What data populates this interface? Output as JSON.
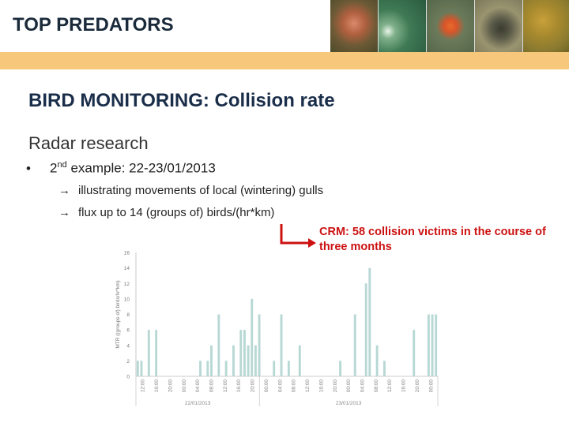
{
  "header": {
    "title": "TOP PREDATORS"
  },
  "section": {
    "title": "BIRD MONITORING: Collision rate",
    "subtitle": "Radar research"
  },
  "bullet": {
    "prefix": "2",
    "sup": "nd",
    "text": " example: 22-23/01/2013"
  },
  "points": [
    "illustrating movements of local (wintering) gulls",
    "flux up to 14 (groups of) birds/(hr*km)"
  ],
  "crm_note": "CRM: 58 collision victims in the course of three months",
  "colors": {
    "band": "#f7c77c",
    "bars": "#b7d8d4",
    "note": "#cc1111"
  },
  "chart_data": {
    "type": "bar",
    "ylabel": "MTR ((groups of) birds/hr*km)",
    "ylim": [
      0,
      16
    ],
    "yticks": [
      0,
      2,
      4,
      6,
      8,
      10,
      12,
      14,
      16
    ],
    "xtick_labels": [
      "12:00",
      "16:00",
      "20:00",
      "00:00",
      "04:00",
      "08:00",
      "12:00",
      "16:00",
      "20:00",
      "00:00",
      "04:00",
      "08:00",
      "12:00",
      "16:00",
      "20:00",
      "00:00",
      "04:00",
      "08:00",
      "12:00",
      "16:00",
      "20:00",
      "00:00"
    ],
    "date_labels": [
      "22/01/2013",
      "23/01/2013"
    ],
    "values": [
      2,
      2,
      0,
      6,
      0,
      6,
      0,
      0,
      0,
      0,
      0,
      0,
      0,
      0,
      0,
      0,
      0,
      2,
      0,
      2,
      4,
      0,
      8,
      0,
      2,
      0,
      4,
      0,
      6,
      6,
      4,
      10,
      4,
      8,
      0,
      0,
      0,
      2,
      0,
      8,
      0,
      2,
      0,
      0,
      4,
      0,
      0,
      0,
      0,
      0,
      0,
      0,
      0,
      0,
      0,
      2,
      0,
      0,
      0,
      8,
      0,
      0,
      12,
      14,
      0,
      4,
      0,
      2,
      0,
      0,
      0,
      0,
      0,
      0,
      0,
      6,
      0,
      0,
      0,
      8,
      8,
      8
    ]
  }
}
